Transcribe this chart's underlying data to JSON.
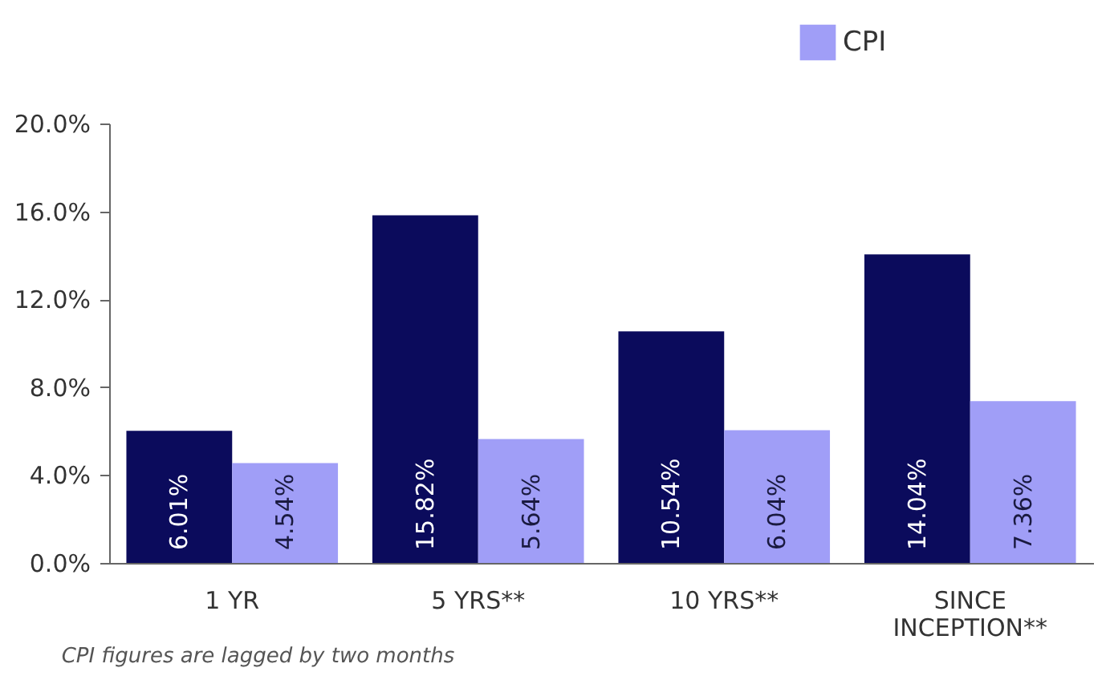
{
  "chart_data": {
    "type": "bar",
    "categories": [
      "1 YR",
      "5 YRS**",
      "10 YRS**",
      "SINCE INCEPTION**"
    ],
    "series": [
      {
        "color": "#0b0b5c",
        "values": [
          6.01,
          15.82,
          10.54,
          14.04
        ],
        "value_labels": [
          "6.01%",
          "15.82%",
          "10.54%",
          "14.04%"
        ]
      },
      {
        "name": "CPI",
        "color": "#a09ef7",
        "values": [
          4.54,
          5.64,
          6.04,
          7.36
        ],
        "value_labels": [
          "4.54%",
          "5.64%",
          "6.04%",
          "7.36%"
        ]
      }
    ],
    "ylim": [
      0,
      20
    ],
    "yticks": [
      {
        "value": 0,
        "label": "0.0%"
      },
      {
        "value": 4,
        "label": "4.0%"
      },
      {
        "value": 8,
        "label": "8.0%"
      },
      {
        "value": 12,
        "label": "12.0%"
      },
      {
        "value": 16,
        "label": "16.0%"
      },
      {
        "value": 20,
        "label": "20.0%"
      }
    ],
    "grid": false,
    "legend": "top right",
    "annotations": [
      "CPI figures are lagged by two months"
    ]
  }
}
